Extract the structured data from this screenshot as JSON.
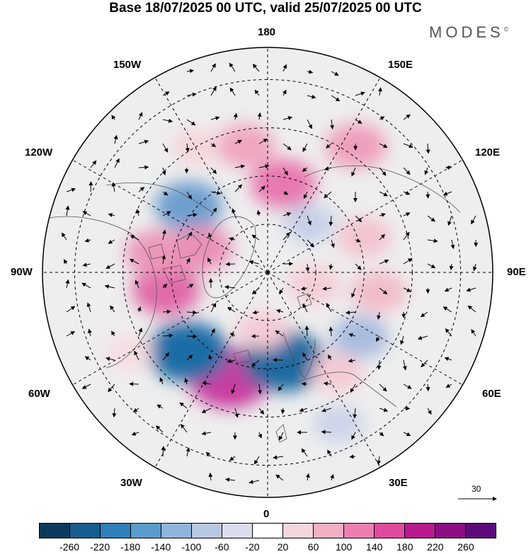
{
  "title": "Base 18/07/2025 00 UTC, valid 25/07/2025 00 UTC",
  "logo": "MODES",
  "logo_mark": "©",
  "longitude_labels": {
    "lon_180": "180",
    "lon_150w": "150W",
    "lon_150e": "150E",
    "lon_120w": "120W",
    "lon_120e": "120E",
    "lon_90w": "90W",
    "lon_90e": "90E",
    "lon_60w": "60W",
    "lon_60e": "60E",
    "lon_30w": "30W",
    "lon_30e": "30E",
    "lon_0": "0"
  },
  "wind_reference_vector": "30",
  "colorbar": {
    "ticks": [
      "-260",
      "-220",
      "-180",
      "-140",
      "-100",
      "-60",
      "-20",
      "20",
      "60",
      "100",
      "140",
      "180",
      "220",
      "260"
    ],
    "colors": [
      "#0d3a5c",
      "#155e8f",
      "#2f7fb8",
      "#5a9ccb",
      "#8fb6da",
      "#b9c8e3",
      "#dcdcef",
      "#ffffff",
      "#f6d6dc",
      "#f1b0c4",
      "#eb80b0",
      "#e04a9f",
      "#b81a8e",
      "#8b0c83",
      "#5e0a7a"
    ]
  },
  "anomaly_cells": [
    {
      "lon": -20,
      "lat": 55,
      "value": 230,
      "color": "#c83da0"
    },
    {
      "lon": 10,
      "lat": 62,
      "value": -240,
      "color": "#1e6aa0"
    },
    {
      "lon": -45,
      "lat": 55,
      "value": -230,
      "color": "#1f6da6"
    },
    {
      "lon": -80,
      "lat": 58,
      "value": 150,
      "color": "#e06aa8"
    },
    {
      "lon": -100,
      "lat": 55,
      "value": 120,
      "color": "#ec96ba"
    },
    {
      "lon": -130,
      "lat": 58,
      "value": -150,
      "color": "#6e9fce"
    },
    {
      "lon": -110,
      "lat": 68,
      "value": 120,
      "color": "#ea90b8"
    },
    {
      "lon": 170,
      "lat": 62,
      "value": 140,
      "color": "#e878b0"
    },
    {
      "lon": -170,
      "lat": 50,
      "value": 100,
      "color": "#f0a6c0"
    },
    {
      "lon": 110,
      "lat": 58,
      "value": 70,
      "color": "#f3c3cf"
    },
    {
      "lon": 80,
      "lat": 55,
      "value": 80,
      "color": "#f2bcc9"
    },
    {
      "lon": 55,
      "lat": 55,
      "value": -90,
      "color": "#a9bcdf"
    },
    {
      "lon": 35,
      "lat": 52,
      "value": 60,
      "color": "#f4cad4"
    },
    {
      "lon": 145,
      "lat": 42,
      "value": 110,
      "color": "#ef9fbd"
    },
    {
      "lon": -150,
      "lat": 45,
      "value": 40,
      "color": "#f6d6dc"
    },
    {
      "lon": 140,
      "lat": 70,
      "value": -60,
      "color": "#c5d0e8"
    },
    {
      "lon": 75,
      "lat": 75,
      "value": 60,
      "color": "#f5cdd6"
    },
    {
      "lon": -5,
      "lat": 72,
      "value": 60,
      "color": "#f4cbd5"
    },
    {
      "lon": 25,
      "lat": 38,
      "value": -50,
      "color": "#cdd4ea"
    },
    {
      "lon": -60,
      "lat": 40,
      "value": 40,
      "color": "#f7dde2"
    }
  ]
}
